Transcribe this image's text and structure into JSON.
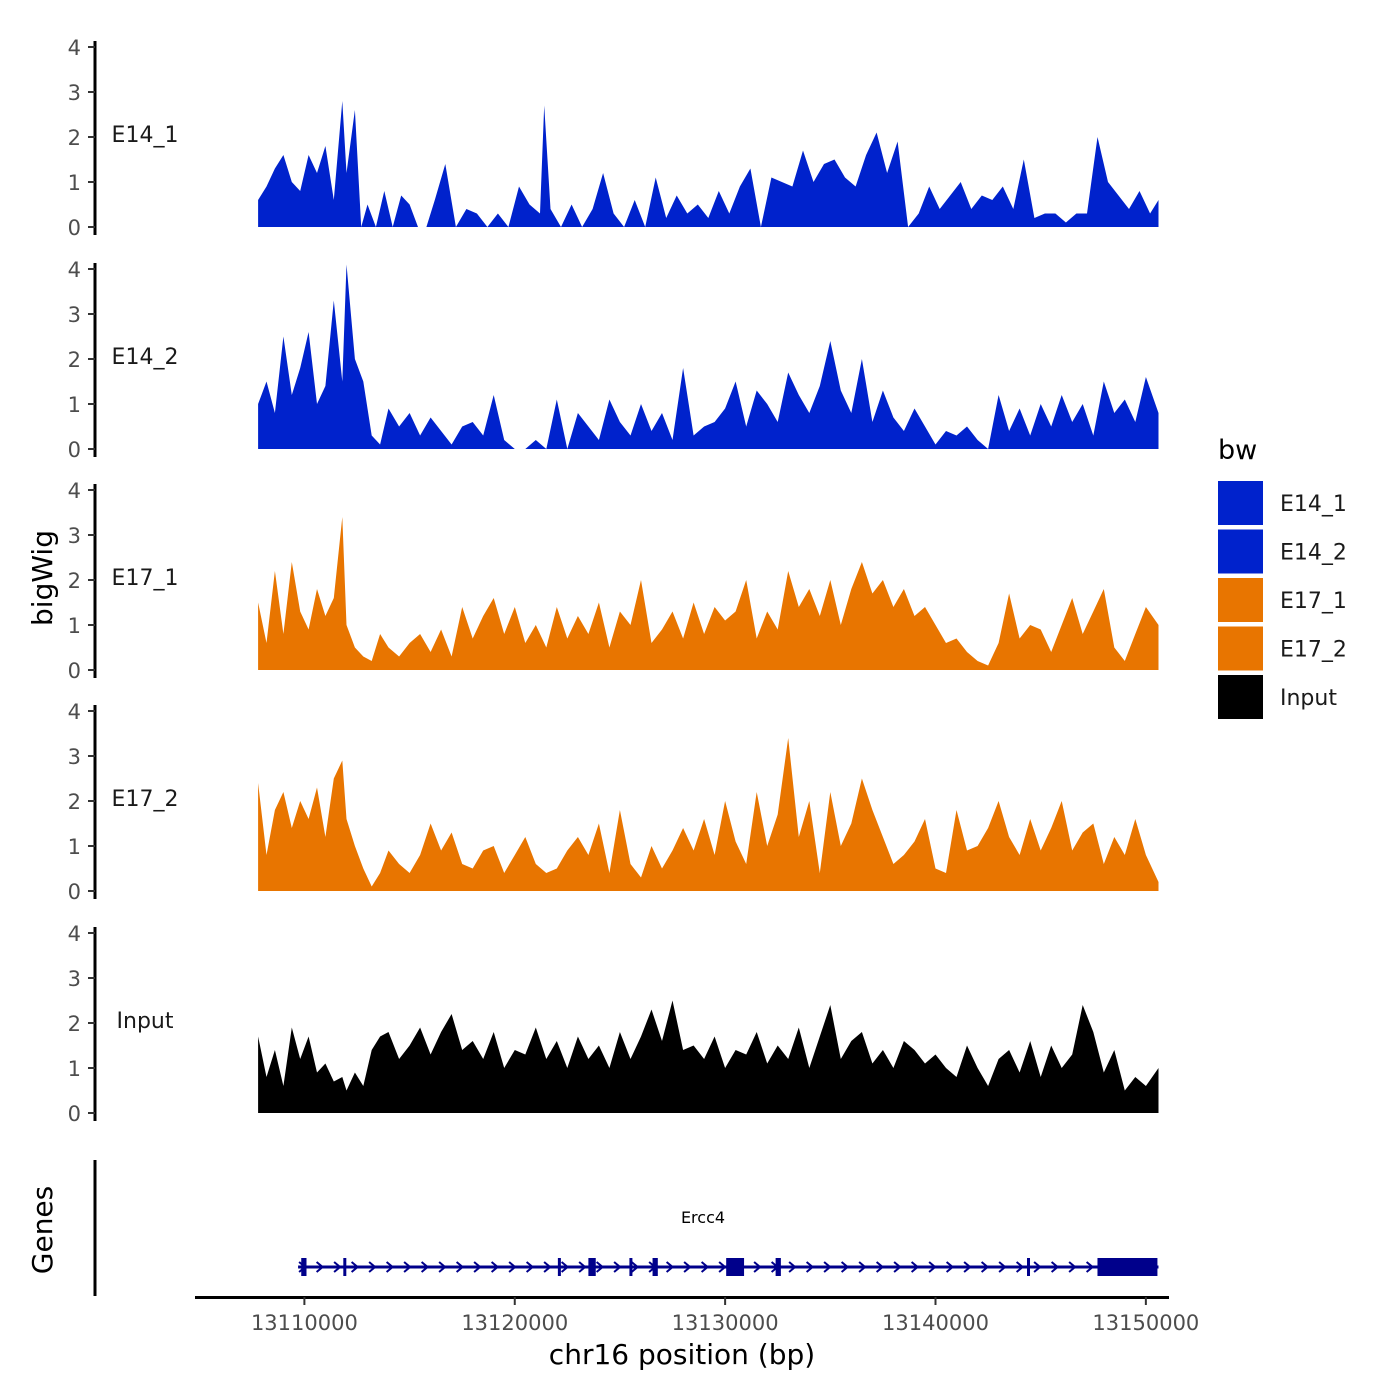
{
  "chart_data": {
    "type": "area",
    "ylabel": "bigWig",
    "xlabel": "chr16 position (bp)",
    "genes_label": "Genes",
    "ylim": [
      0,
      4.2
    ],
    "y_ticks": [
      0,
      1,
      2,
      3,
      4
    ],
    "xlim": [
      13104800,
      13151100
    ],
    "x_ticks": [
      13110000,
      13120000,
      13130000,
      13140000,
      13150000
    ],
    "x_tick_labels": [
      "13110000",
      "13120000",
      "13130000",
      "13140000",
      "13150000"
    ],
    "legend": {
      "title": "bw",
      "entries": [
        {
          "label": "E14_1",
          "color": "#0022cc"
        },
        {
          "label": "E14_2",
          "color": "#0022cc"
        },
        {
          "label": "E17_1",
          "color": "#e87500"
        },
        {
          "label": "E17_2",
          "color": "#e87500"
        },
        {
          "label": "Input",
          "color": "#000000"
        }
      ]
    },
    "tracks": [
      {
        "name": "E14_1",
        "color": "#0022cc",
        "x": [
          13107800,
          13108200,
          13108600,
          13109000,
          13109400,
          13109800,
          13110200,
          13110600,
          13111000,
          13111400,
          13111800,
          13112000,
          13112400,
          13112700,
          13113000,
          13113400,
          13113800,
          13114200,
          13114600,
          13115000,
          13115400,
          13115800,
          13116200,
          13116700,
          13117200,
          13117700,
          13118200,
          13118700,
          13119200,
          13119700,
          13120200,
          13120700,
          13121200,
          13121400,
          13121700,
          13122200,
          13122700,
          13123200,
          13123700,
          13124200,
          13124700,
          13125200,
          13125700,
          13126200,
          13126700,
          13127200,
          13127700,
          13128200,
          13128700,
          13129200,
          13129700,
          13130200,
          13130700,
          13131200,
          13131700,
          13132200,
          13132700,
          13133200,
          13133700,
          13134200,
          13134700,
          13135200,
          13135700,
          13136200,
          13136700,
          13137200,
          13137700,
          13138200,
          13138700,
          13139200,
          13139700,
          13140200,
          13140700,
          13141200,
          13141700,
          13142200,
          13142700,
          13143200,
          13143700,
          13144200,
          13144700,
          13145200,
          13145700,
          13146200,
          13146700,
          13147200,
          13147700,
          13148200,
          13148700,
          13149200,
          13149700,
          13150200,
          13150600
        ],
        "y": [
          0.6,
          0.9,
          1.3,
          1.6,
          1.0,
          0.8,
          1.6,
          1.2,
          1.8,
          0.6,
          2.8,
          1.2,
          2.6,
          0,
          0.5,
          0,
          0.8,
          0,
          0.7,
          0.5,
          0,
          0,
          0.6,
          1.4,
          0,
          0.4,
          0.3,
          0,
          0.3,
          0,
          0.9,
          0.5,
          0.3,
          2.7,
          0.4,
          0,
          0.5,
          0,
          0.4,
          1.2,
          0.3,
          0,
          0.6,
          0,
          1.1,
          0.2,
          0.7,
          0.3,
          0.5,
          0.2,
          0.8,
          0.3,
          0.9,
          1.3,
          0,
          1.1,
          1.0,
          0.9,
          1.7,
          1.0,
          1.4,
          1.5,
          1.1,
          0.9,
          1.6,
          2.1,
          1.2,
          1.9,
          0,
          0.3,
          0.9,
          0.4,
          0.7,
          1.0,
          0.4,
          0.7,
          0.6,
          0.9,
          0.4,
          1.5,
          0.2,
          0.3,
          0.3,
          0.1,
          0.3,
          0.3,
          2.0,
          1.0,
          0.7,
          0.4,
          0.8,
          0.3,
          0.6
        ]
      },
      {
        "name": "E14_2",
        "color": "#0022cc",
        "x": [
          13107800,
          13108200,
          13108600,
          13109000,
          13109400,
          13109800,
          13110200,
          13110600,
          13111000,
          13111400,
          13111800,
          13112000,
          13112400,
          13112800,
          13113200,
          13113600,
          13114000,
          13114500,
          13115000,
          13115500,
          13116000,
          13116500,
          13117000,
          13117500,
          13118000,
          13118500,
          13119000,
          13119500,
          13120000,
          13120500,
          13121000,
          13121500,
          13122000,
          13122500,
          13123000,
          13123500,
          13124000,
          13124500,
          13125000,
          13125500,
          13126000,
          13126500,
          13127000,
          13127500,
          13128000,
          13128500,
          13129000,
          13129500,
          13130000,
          13130500,
          13131000,
          13131500,
          13132000,
          13132500,
          13133000,
          13133500,
          13134000,
          13134500,
          13135000,
          13135500,
          13136000,
          13136500,
          13137000,
          13137500,
          13138000,
          13138500,
          13139000,
          13139500,
          13140000,
          13140500,
          13141000,
          13141500,
          13142000,
          13142500,
          13143000,
          13143500,
          13144000,
          13144500,
          13145000,
          13145500,
          13146000,
          13146500,
          13147000,
          13147500,
          13148000,
          13148500,
          13149000,
          13149500,
          13150000,
          13150600
        ],
        "y": [
          1.0,
          1.5,
          0.8,
          2.5,
          1.2,
          1.8,
          2.6,
          1.0,
          1.4,
          3.3,
          1.5,
          4.1,
          2.0,
          1.5,
          0.3,
          0.1,
          0.9,
          0.5,
          0.8,
          0.3,
          0.7,
          0.4,
          0.1,
          0.5,
          0.6,
          0.3,
          1.2,
          0.2,
          0,
          0,
          0.2,
          0,
          1.1,
          0,
          0.8,
          0.5,
          0.2,
          1.1,
          0.6,
          0.3,
          1.0,
          0.4,
          0.8,
          0.2,
          1.8,
          0.3,
          0.5,
          0.6,
          0.9,
          1.5,
          0.5,
          1.3,
          1.0,
          0.6,
          1.7,
          1.2,
          0.8,
          1.4,
          2.4,
          1.3,
          0.8,
          2.0,
          0.6,
          1.3,
          0.7,
          0.4,
          0.9,
          0.5,
          0.1,
          0.4,
          0.3,
          0.5,
          0.2,
          0,
          1.2,
          0.4,
          0.9,
          0.3,
          1.0,
          0.5,
          1.2,
          0.6,
          1.0,
          0.3,
          1.5,
          0.8,
          1.1,
          0.6,
          1.6,
          0.8
        ]
      },
      {
        "name": "E17_1",
        "color": "#e87500",
        "x": [
          13107800,
          13108200,
          13108600,
          13109000,
          13109400,
          13109800,
          13110200,
          13110600,
          13111000,
          13111400,
          13111800,
          13112000,
          13112400,
          13112800,
          13113200,
          13113600,
          13114000,
          13114500,
          13115000,
          13115500,
          13116000,
          13116500,
          13117000,
          13117500,
          13118000,
          13118500,
          13119000,
          13119500,
          13120000,
          13120500,
          13121000,
          13121500,
          13122000,
          13122500,
          13123000,
          13123500,
          13124000,
          13124500,
          13125000,
          13125500,
          13126000,
          13126500,
          13127000,
          13127500,
          13128000,
          13128500,
          13129000,
          13129500,
          13130000,
          13130500,
          13131000,
          13131500,
          13132000,
          13132500,
          13133000,
          13133500,
          13134000,
          13134500,
          13135000,
          13135500,
          13136000,
          13136500,
          13137000,
          13137500,
          13138000,
          13138500,
          13139000,
          13139500,
          13140000,
          13140500,
          13141000,
          13141500,
          13142000,
          13142500,
          13143000,
          13143500,
          13144000,
          13144500,
          13145000,
          13145500,
          13146000,
          13146500,
          13147000,
          13147500,
          13148000,
          13148500,
          13149000,
          13149500,
          13150000,
          13150600
        ],
        "y": [
          1.5,
          0.6,
          2.2,
          0.8,
          2.4,
          1.3,
          0.9,
          1.8,
          1.2,
          1.6,
          3.4,
          1.0,
          0.5,
          0.3,
          0.2,
          0.8,
          0.5,
          0.3,
          0.6,
          0.8,
          0.4,
          0.9,
          0.3,
          1.4,
          0.7,
          1.2,
          1.6,
          0.8,
          1.4,
          0.6,
          1.0,
          0.5,
          1.4,
          0.7,
          1.2,
          0.8,
          1.5,
          0.5,
          1.3,
          1.0,
          2.0,
          0.6,
          0.9,
          1.3,
          0.7,
          1.5,
          0.8,
          1.4,
          1.1,
          1.3,
          2.0,
          0.7,
          1.3,
          0.9,
          2.2,
          1.4,
          1.8,
          1.2,
          2.0,
          1.0,
          1.8,
          2.4,
          1.7,
          2.0,
          1.4,
          1.8,
          1.2,
          1.4,
          1.0,
          0.6,
          0.7,
          0.4,
          0.2,
          0.1,
          0.6,
          1.7,
          0.7,
          1.0,
          0.9,
          0.4,
          1.0,
          1.6,
          0.8,
          1.3,
          1.8,
          0.5,
          0.2,
          0.8,
          1.4,
          1.0
        ]
      },
      {
        "name": "E17_2",
        "color": "#e87500",
        "x": [
          13107800,
          13108200,
          13108600,
          13109000,
          13109400,
          13109800,
          13110200,
          13110600,
          13111000,
          13111400,
          13111800,
          13112000,
          13112400,
          13112800,
          13113200,
          13113600,
          13114000,
          13114500,
          13115000,
          13115500,
          13116000,
          13116500,
          13117000,
          13117500,
          13118000,
          13118500,
          13119000,
          13119500,
          13120000,
          13120500,
          13121000,
          13121500,
          13122000,
          13122500,
          13123000,
          13123500,
          13124000,
          13124500,
          13125000,
          13125500,
          13126000,
          13126500,
          13127000,
          13127500,
          13128000,
          13128500,
          13129000,
          13129500,
          13130000,
          13130500,
          13131000,
          13131500,
          13132000,
          13132500,
          13133000,
          13133500,
          13134000,
          13134500,
          13135000,
          13135500,
          13136000,
          13136500,
          13137000,
          13137500,
          13138000,
          13138500,
          13139000,
          13139500,
          13140000,
          13140500,
          13141000,
          13141500,
          13142000,
          13142500,
          13143000,
          13143500,
          13144000,
          13144500,
          13145000,
          13145500,
          13146000,
          13146500,
          13147000,
          13147500,
          13148000,
          13148500,
          13149000,
          13149500,
          13150000,
          13150600
        ],
        "y": [
          2.4,
          0.8,
          1.8,
          2.2,
          1.4,
          2.0,
          1.6,
          2.3,
          1.2,
          2.5,
          2.9,
          1.6,
          1.0,
          0.5,
          0.1,
          0.4,
          0.9,
          0.6,
          0.4,
          0.8,
          1.5,
          0.9,
          1.3,
          0.6,
          0.5,
          0.9,
          1.0,
          0.4,
          0.8,
          1.2,
          0.6,
          0.4,
          0.5,
          0.9,
          1.2,
          0.8,
          1.5,
          0.4,
          1.8,
          0.6,
          0.3,
          1.0,
          0.5,
          0.9,
          1.4,
          0.9,
          1.6,
          0.8,
          2.0,
          1.1,
          0.6,
          2.2,
          1.0,
          1.7,
          3.4,
          1.2,
          2.0,
          0.4,
          2.2,
          1.0,
          1.5,
          2.5,
          1.8,
          1.2,
          0.6,
          0.8,
          1.1,
          1.6,
          0.5,
          0.4,
          1.8,
          0.9,
          1.0,
          1.4,
          2.0,
          1.2,
          0.8,
          1.6,
          0.9,
          1.4,
          2.0,
          0.9,
          1.3,
          1.5,
          0.6,
          1.2,
          0.8,
          1.6,
          0.8,
          0.2
        ]
      },
      {
        "name": "Input",
        "color": "#000000",
        "x": [
          13107800,
          13108200,
          13108600,
          13109000,
          13109400,
          13109800,
          13110200,
          13110600,
          13111000,
          13111400,
          13111800,
          13112000,
          13112400,
          13112800,
          13113200,
          13113600,
          13114000,
          13114500,
          13115000,
          13115500,
          13116000,
          13116500,
          13117000,
          13117500,
          13118000,
          13118500,
          13119000,
          13119500,
          13120000,
          13120500,
          13121000,
          13121500,
          13122000,
          13122500,
          13123000,
          13123500,
          13124000,
          13124500,
          13125000,
          13125500,
          13126000,
          13126500,
          13127000,
          13127500,
          13128000,
          13128500,
          13129000,
          13129500,
          13130000,
          13130500,
          13131000,
          13131500,
          13132000,
          13132500,
          13133000,
          13133500,
          13134000,
          13134500,
          13135000,
          13135500,
          13136000,
          13136500,
          13137000,
          13137500,
          13138000,
          13138500,
          13139000,
          13139500,
          13140000,
          13140500,
          13141000,
          13141500,
          13142000,
          13142500,
          13143000,
          13143500,
          13144000,
          13144500,
          13145000,
          13145500,
          13146000,
          13146500,
          13147000,
          13147500,
          13148000,
          13148500,
          13149000,
          13149500,
          13150000,
          13150600
        ],
        "y": [
          1.7,
          0.8,
          1.4,
          0.6,
          1.9,
          1.2,
          1.7,
          0.9,
          1.1,
          0.7,
          0.8,
          0.5,
          0.9,
          0.6,
          1.4,
          1.7,
          1.8,
          1.2,
          1.5,
          1.9,
          1.3,
          1.8,
          2.2,
          1.4,
          1.6,
          1.2,
          1.8,
          1.0,
          1.4,
          1.3,
          1.9,
          1.2,
          1.6,
          1.0,
          1.7,
          1.2,
          1.5,
          1.0,
          1.8,
          1.2,
          1.7,
          2.3,
          1.6,
          2.5,
          1.4,
          1.5,
          1.2,
          1.7,
          1.0,
          1.4,
          1.3,
          1.8,
          1.1,
          1.5,
          1.2,
          1.9,
          1.0,
          1.7,
          2.4,
          1.2,
          1.6,
          1.8,
          1.1,
          1.4,
          1.0,
          1.6,
          1.4,
          1.1,
          1.3,
          1.0,
          0.8,
          1.5,
          1.0,
          0.6,
          1.2,
          1.4,
          0.9,
          1.6,
          0.8,
          1.5,
          1.0,
          1.3,
          2.4,
          1.8,
          0.9,
          1.4,
          0.5,
          0.8,
          0.6,
          1.0
        ]
      }
    ],
    "gene_track": {
      "gene_name": "Ercc4",
      "strand": "+",
      "start": 13109700,
      "end": 13150600,
      "exons": [
        {
          "start": 13109850,
          "end": 13110100
        },
        {
          "start": 13111850,
          "end": 13111950
        },
        {
          "start": 13122050,
          "end": 13122150
        },
        {
          "start": 13123500,
          "end": 13123850
        },
        {
          "start": 13125450,
          "end": 13125550
        },
        {
          "start": 13126550,
          "end": 13126800
        },
        {
          "start": 13130050,
          "end": 13130900
        },
        {
          "start": 13132400,
          "end": 13132650
        },
        {
          "start": 13144350,
          "end": 13144450
        },
        {
          "start": 13147700,
          "end": 13150550
        }
      ]
    }
  }
}
